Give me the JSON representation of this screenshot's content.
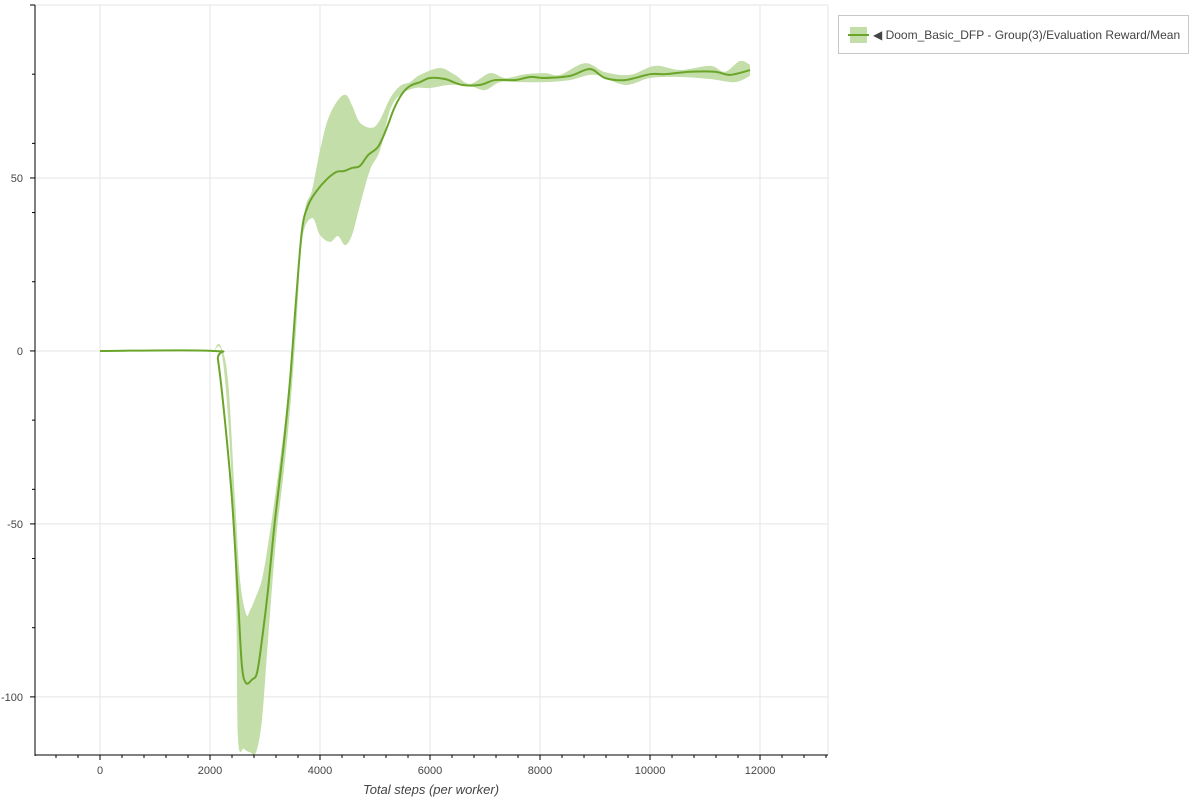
{
  "chart_data": {
    "type": "line",
    "title": "",
    "xlabel": "Total steps (per worker)",
    "ylabel": "",
    "xlim": [
      -1182,
      13236
    ],
    "ylim": [
      -116.8,
      100
    ],
    "xticks": [
      0,
      2000,
      4000,
      6000,
      8000,
      10000,
      12000
    ],
    "yticks": [
      -100,
      -50,
      0,
      50
    ],
    "grid": true,
    "legend_position": "outside-top-right",
    "colors": {
      "line": "#6aa52a",
      "band": "#c3dea8",
      "grid": "#e5e5e5"
    },
    "series": [
      {
        "name": "◀ Doom_Basic_DFP - Group(3)/Evaluation Reward/Mean",
        "mean": [
          [
            0,
            0
          ],
          [
            2073,
            0
          ],
          [
            2145,
            -2.6
          ],
          [
            2270,
            -20
          ],
          [
            2400,
            -43
          ],
          [
            2510,
            -72
          ],
          [
            2580,
            -91
          ],
          [
            2655,
            -96
          ],
          [
            2764,
            -95
          ],
          [
            2855,
            -93
          ],
          [
            2945,
            -83.5
          ],
          [
            3055,
            -69
          ],
          [
            3180,
            -49
          ],
          [
            3330,
            -28.6
          ],
          [
            3455,
            -8.4
          ],
          [
            3564,
            14.7
          ],
          [
            3673,
            35
          ],
          [
            3782,
            42
          ],
          [
            3927,
            46
          ],
          [
            4109,
            49.4
          ],
          [
            4291,
            51.7
          ],
          [
            4436,
            52
          ],
          [
            4582,
            52.9
          ],
          [
            4727,
            53.5
          ],
          [
            4873,
            56.6
          ],
          [
            5055,
            59
          ],
          [
            5200,
            63.9
          ],
          [
            5345,
            70
          ],
          [
            5491,
            74.3
          ],
          [
            5636,
            76.6
          ],
          [
            5818,
            77.7
          ],
          [
            6000,
            78.9
          ],
          [
            6273,
            78.6
          ],
          [
            6582,
            76.9
          ],
          [
            6909,
            76.9
          ],
          [
            7182,
            78.3
          ],
          [
            7545,
            78.3
          ],
          [
            7818,
            79.2
          ],
          [
            8091,
            78.9
          ],
          [
            8545,
            79.5
          ],
          [
            8909,
            81.5
          ],
          [
            9182,
            78.9
          ],
          [
            9545,
            78.3
          ],
          [
            10000,
            80
          ],
          [
            10273,
            80
          ],
          [
            10727,
            80.7
          ],
          [
            11182,
            80.7
          ],
          [
            11455,
            79.8
          ],
          [
            11818,
            81.2
          ]
        ],
        "upper": [
          [
            2073,
            0
          ],
          [
            2182,
            1.7
          ],
          [
            2327,
            -8.4
          ],
          [
            2455,
            -43
          ],
          [
            2545,
            -66
          ],
          [
            2655,
            -76
          ],
          [
            2727,
            -75
          ],
          [
            2836,
            -71
          ],
          [
            2945,
            -66
          ],
          [
            3055,
            -56
          ],
          [
            3200,
            -40
          ],
          [
            3364,
            -20
          ],
          [
            3491,
            0
          ],
          [
            3600,
            23
          ],
          [
            3727,
            40.8
          ],
          [
            3855,
            46.5
          ],
          [
            4000,
            58
          ],
          [
            4145,
            67
          ],
          [
            4327,
            72.5
          ],
          [
            4473,
            74
          ],
          [
            4582,
            71
          ],
          [
            4727,
            66
          ],
          [
            4945,
            64.5
          ],
          [
            5091,
            66.8
          ],
          [
            5273,
            73
          ],
          [
            5455,
            76.6
          ],
          [
            5636,
            77.7
          ],
          [
            5818,
            79.8
          ],
          [
            6182,
            81.8
          ],
          [
            6455,
            79.8
          ],
          [
            6727,
            77.2
          ],
          [
            7091,
            80.3
          ],
          [
            7364,
            78.9
          ],
          [
            7727,
            80
          ],
          [
            8091,
            80.3
          ],
          [
            8364,
            79.8
          ],
          [
            8818,
            83.2
          ],
          [
            9182,
            80.6
          ],
          [
            9636,
            79.8
          ],
          [
            10091,
            82.4
          ],
          [
            10545,
            81.2
          ],
          [
            11091,
            82.4
          ],
          [
            11364,
            80.7
          ],
          [
            11636,
            83.8
          ],
          [
            11818,
            82.7
          ]
        ],
        "lower": [
          [
            2073,
            0
          ],
          [
            2218,
            -1
          ],
          [
            2364,
            -28.6
          ],
          [
            2473,
            -72
          ],
          [
            2509,
            -112
          ],
          [
            2618,
            -115
          ],
          [
            2727,
            -116
          ],
          [
            2836,
            -116
          ],
          [
            2945,
            -106.6
          ],
          [
            3055,
            -83.5
          ],
          [
            3200,
            -54.6
          ],
          [
            3345,
            -34.4
          ],
          [
            3455,
            -17
          ],
          [
            3564,
            6
          ],
          [
            3673,
            32
          ],
          [
            3855,
            38.4
          ],
          [
            4000,
            33.5
          ],
          [
            4182,
            31.5
          ],
          [
            4327,
            33.2
          ],
          [
            4455,
            30.6
          ],
          [
            4582,
            33.5
          ],
          [
            4727,
            42.2
          ],
          [
            4909,
            52.3
          ],
          [
            5091,
            58
          ],
          [
            5273,
            69.6
          ],
          [
            5455,
            74
          ],
          [
            5727,
            76
          ],
          [
            6000,
            76
          ],
          [
            6364,
            76.9
          ],
          [
            6727,
            76.6
          ],
          [
            7000,
            75.4
          ],
          [
            7273,
            77.7
          ],
          [
            7636,
            77.7
          ],
          [
            8091,
            77.7
          ],
          [
            8545,
            78.3
          ],
          [
            9000,
            79.8
          ],
          [
            9545,
            76.9
          ],
          [
            10000,
            78.9
          ],
          [
            10545,
            79.2
          ],
          [
            11091,
            78.6
          ],
          [
            11545,
            77.7
          ],
          [
            11818,
            79.5
          ]
        ]
      }
    ]
  }
}
